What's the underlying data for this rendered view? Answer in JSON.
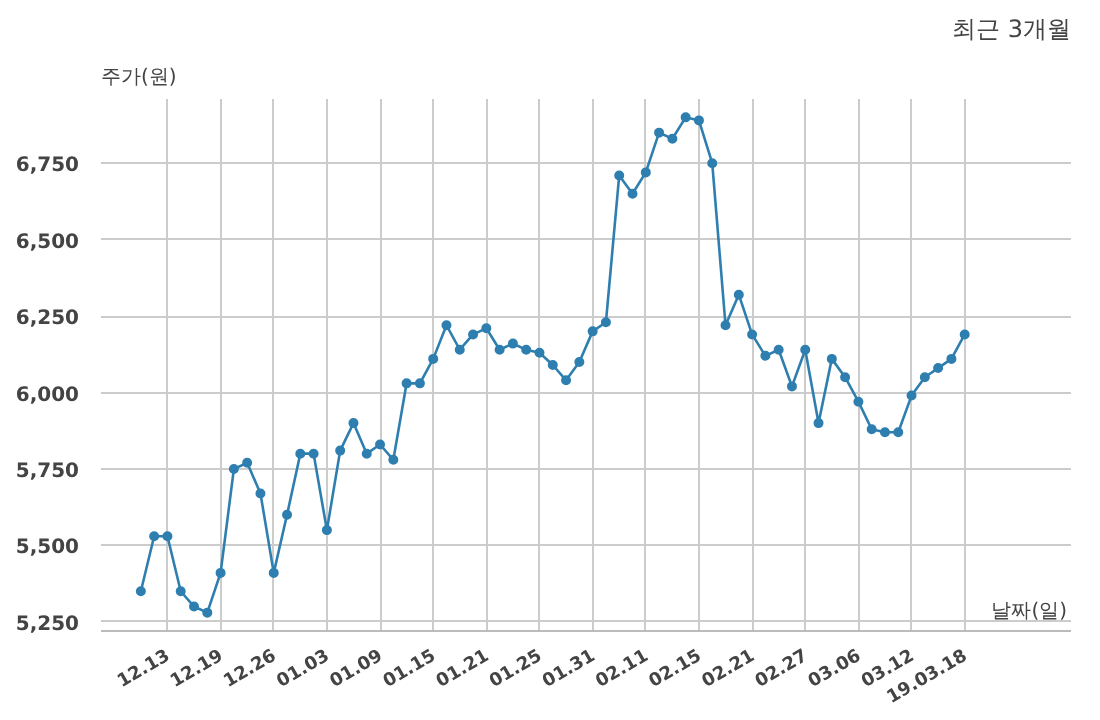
{
  "chart_data": {
    "type": "line",
    "title": "최근 3개월",
    "ylabel": "주가(원)",
    "xlabel": "날짜(일)",
    "categories": [
      null,
      null,
      "12.13",
      null,
      null,
      null,
      "12.19",
      null,
      null,
      null,
      "12.26",
      null,
      null,
      null,
      "01.03",
      null,
      null,
      null,
      "01.09",
      null,
      null,
      null,
      "01.15",
      null,
      null,
      null,
      "01.21",
      null,
      null,
      null,
      "01.25",
      null,
      null,
      null,
      "01.31",
      null,
      null,
      null,
      "02.11",
      null,
      null,
      null,
      "02.15",
      null,
      null,
      null,
      "02.21",
      null,
      null,
      null,
      "02.27",
      null,
      null,
      null,
      "03.06",
      null,
      null,
      null,
      "03.12",
      null,
      null,
      null,
      "19.03.18"
    ],
    "series": [
      {
        "color": "#2e7fb0",
        "values": [
          5350,
          5530,
          5530,
          5350,
          5300,
          5280,
          5410,
          5750,
          5770,
          5670,
          5410,
          5600,
          5800,
          5800,
          5550,
          5810,
          5900,
          5800,
          5830,
          5780,
          6030,
          6030,
          6110,
          6220,
          6140,
          6190,
          6210,
          6140,
          6160,
          6140,
          6130,
          6090,
          6040,
          6100,
          6200,
          6230,
          6710,
          6650,
          6720,
          6850,
          6830,
          6900,
          6890,
          6750,
          6220,
          6320,
          6190,
          6120,
          6140,
          6020,
          6140,
          5900,
          6110,
          6050,
          5970,
          5880,
          5870,
          5870,
          5990,
          6050,
          6080,
          6110,
          6190
        ]
      }
    ],
    "ylim": [
      5220,
      6960
    ],
    "yticks": [
      {
        "value": 5250,
        "label": "5,250"
      },
      {
        "value": 5500,
        "label": "5,500"
      },
      {
        "value": 5750,
        "label": "5,750"
      },
      {
        "value": 6000,
        "label": "6,000"
      },
      {
        "value": 6250,
        "label": "6,250"
      },
      {
        "value": 6500,
        "label": "6,500"
      },
      {
        "value": 6750,
        "label": "6,750"
      }
    ],
    "grid": true,
    "marker": "circle",
    "line_style": "solid"
  }
}
